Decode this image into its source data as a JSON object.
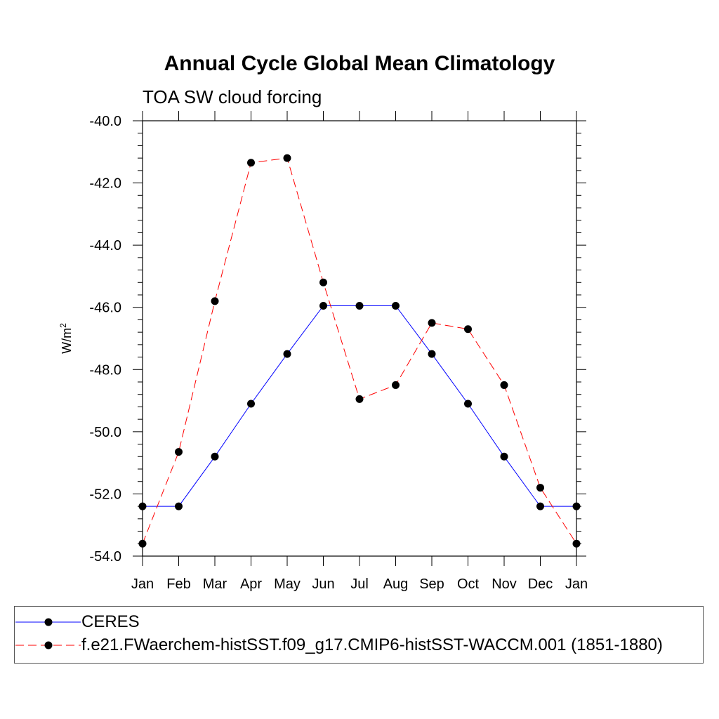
{
  "chart_data": {
    "type": "line",
    "title": "Annual Cycle Global Mean Climatology",
    "subtitle": "TOA SW cloud forcing",
    "xlabel": "",
    "ylabel": "W/m",
    "ylabel_superscript": "2",
    "categories": [
      "Jan",
      "Feb",
      "Mar",
      "Apr",
      "May",
      "Jun",
      "Jul",
      "Aug",
      "Sep",
      "Oct",
      "Nov",
      "Dec",
      "Jan"
    ],
    "ylim": [
      -54.0,
      -40.0
    ],
    "yticks": [
      "-40.0",
      "-42.0",
      "-44.0",
      "-46.0",
      "-48.0",
      "-50.0",
      "-52.0",
      "-54.0"
    ],
    "series": [
      {
        "name": "CERES",
        "color": "#0000ff",
        "dash": "solid",
        "values": [
          -52.4,
          -52.4,
          -50.8,
          -49.1,
          -47.5,
          -45.95,
          -45.95,
          -45.95,
          -47.5,
          -49.1,
          -50.8,
          -52.4,
          -52.4
        ]
      },
      {
        "name": "f.e21.FWaerchem-histSST.f09_g17.CMIP6-histSST-WACCM.001 (1851-1880)",
        "color": "#ff0000",
        "dash": "dashed",
        "values": [
          -53.6,
          -50.65,
          -45.8,
          -41.35,
          -41.2,
          -45.2,
          -48.95,
          -48.5,
          -46.5,
          -46.7,
          -48.5,
          -51.8,
          -53.6
        ]
      }
    ],
    "legend_position": "bottom"
  }
}
